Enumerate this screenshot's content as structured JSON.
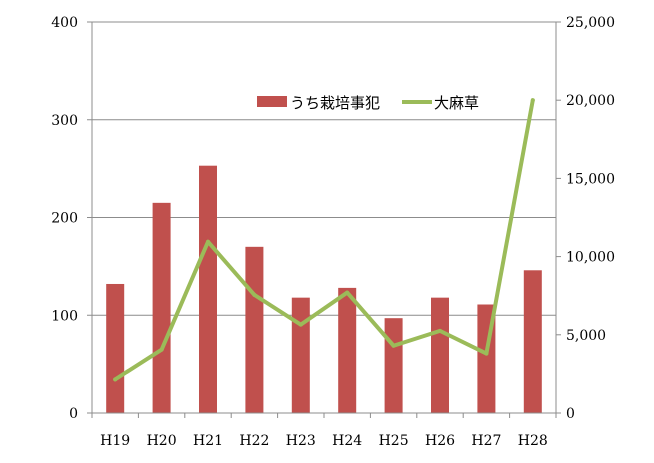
{
  "chart_data": {
    "type": "bar+line",
    "categories": [
      "H19",
      "H20",
      "H21",
      "H22",
      "H23",
      "H24",
      "H25",
      "H26",
      "H27",
      "H28"
    ],
    "series": [
      {
        "name": "うち栽培事犯",
        "type": "bar",
        "axis": "left",
        "color": "#c0504d",
        "values": [
          132,
          215,
          253,
          170,
          118,
          128,
          97,
          118,
          111,
          146
        ]
      },
      {
        "name": "大麻草",
        "type": "line",
        "axis": "right",
        "color": "#9bbb59",
        "values": [
          2150,
          4050,
          10950,
          7550,
          5650,
          7700,
          4300,
          5250,
          3800,
          20000
        ]
      }
    ],
    "y_left": {
      "min": 0,
      "max": 400,
      "ticks": [
        "0",
        "100",
        "200",
        "300",
        "400"
      ]
    },
    "y_right": {
      "min": 0,
      "max": 25000,
      "ticks": [
        "0",
        "5,000",
        "10,000",
        "15,000",
        "20,000",
        "25,000"
      ]
    },
    "grid": true,
    "legend": "top-right"
  }
}
